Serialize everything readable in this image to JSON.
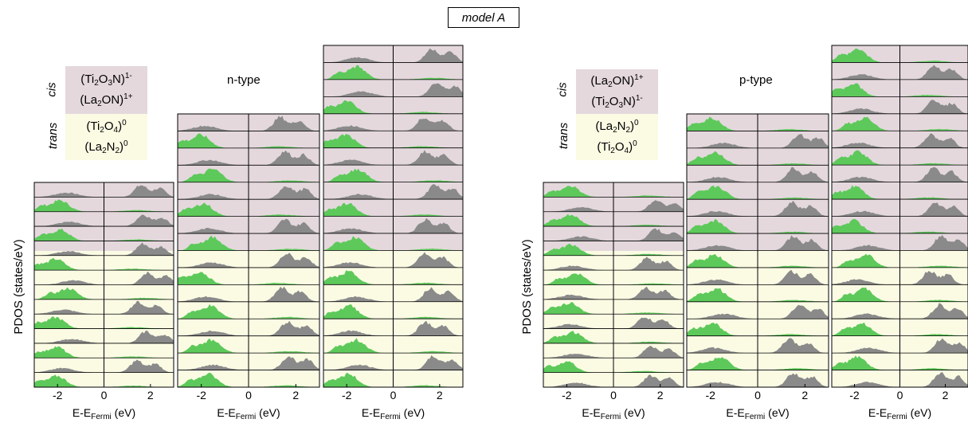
{
  "header": {
    "model_label": "model A"
  },
  "colors": {
    "pink_bg": "#e4d8dd",
    "yellow_bg": "#fbfbe4",
    "gray_fill": "#8a8a8a",
    "green_fill": "#5dc95a"
  },
  "chart_data": {
    "type": "area",
    "ylabel": "PDOS (states/eV)",
    "xlabel_main": "E-E",
    "xlabel_sub": "Fermi",
    "xlabel_unit": " (eV)",
    "xlim": [
      -3.0,
      3.0
    ],
    "xticks": [
      -2,
      0,
      2
    ],
    "xtick_labels": [
      "-2",
      "0",
      "2"
    ],
    "panels": [
      {
        "group": "n-type",
        "column": 1,
        "rows": [
          "g",
          "n",
          "g",
          "n",
          "g",
          "n",
          "g",
          "n",
          "g",
          "n",
          "g",
          "n",
          "g",
          "n"
        ],
        "layer_regions": [
          "pink",
          "pink",
          "pink",
          "pink",
          "yellow",
          "yellow",
          "yellow",
          "yellow",
          "yellow",
          "yellow",
          "yellow",
          "yellow",
          "yellow",
          "yellow"
        ]
      },
      {
        "group": "n-type",
        "column": 2,
        "rows": [
          "g",
          "n",
          "g",
          "n",
          "g",
          "n",
          "g",
          "n",
          "g",
          "n",
          "g",
          "n",
          "g",
          "n",
          "g",
          "n"
        ]
      },
      {
        "group": "n-type",
        "column": 3,
        "rows": [
          "g",
          "n",
          "g",
          "n",
          "g",
          "n",
          "g",
          "n",
          "g",
          "n",
          "g",
          "n",
          "g",
          "n",
          "g",
          "n",
          "g",
          "n",
          "g",
          "n"
        ]
      },
      {
        "group": "p-type",
        "column": 1,
        "rows": [
          "n",
          "g",
          "n",
          "g",
          "n",
          "g",
          "n",
          "g",
          "n",
          "g",
          "n",
          "g",
          "n",
          "g"
        ]
      },
      {
        "group": "p-type",
        "column": 2,
        "rows": [
          "n",
          "g",
          "n",
          "g",
          "n",
          "g",
          "n",
          "g",
          "n",
          "g",
          "n",
          "g",
          "n",
          "g",
          "n",
          "g"
        ]
      },
      {
        "group": "p-type",
        "column": 3,
        "rows": [
          "n",
          "g",
          "n",
          "g",
          "n",
          "g",
          "n",
          "g",
          "n",
          "g",
          "n",
          "g",
          "n",
          "g",
          "n",
          "g",
          "n",
          "g",
          "n",
          "g"
        ]
      }
    ],
    "legends": {
      "n_type": {
        "title": "n-type",
        "cis_label": "cis",
        "trans_label": "trans",
        "cis_lines": [
          {
            "base": "(Ti",
            "s1": "2",
            "m1": "O",
            "s2": "3",
            "m2": "N)",
            "charge": "1-"
          },
          {
            "base": "(La",
            "s1": "2",
            "m1": "ON)",
            "s2": "",
            "m2": "",
            "charge": "1+"
          }
        ],
        "trans_lines": [
          {
            "base": "(Ti",
            "s1": "2",
            "m1": "O",
            "s2": "4",
            "m2": ")",
            "charge": "0"
          },
          {
            "base": "(La",
            "s1": "2",
            "m1": "N",
            "s2": "2",
            "m2": ")",
            "charge": "0"
          }
        ]
      },
      "p_type": {
        "title": "p-type",
        "cis_label": "cis",
        "trans_label": "trans",
        "cis_lines": [
          {
            "base": "(La",
            "s1": "2",
            "m1": "ON)",
            "s2": "",
            "m2": "",
            "charge": "1+"
          },
          {
            "base": "(Ti",
            "s1": "2",
            "m1": "O",
            "s2": "3",
            "m2": "N)",
            "charge": "1-"
          }
        ],
        "trans_lines": [
          {
            "base": "(La",
            "s1": "2",
            "m1": "N",
            "s2": "2",
            "m2": ")",
            "charge": "0"
          },
          {
            "base": "(Ti",
            "s1": "2",
            "m1": "O",
            "s2": "4",
            "m2": ")",
            "charge": "0"
          }
        ]
      }
    }
  }
}
